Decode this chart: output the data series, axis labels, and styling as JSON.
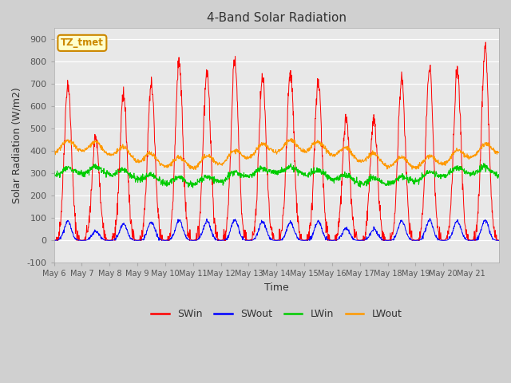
{
  "title": "4-Band Solar Radiation",
  "xlabel": "Time",
  "ylabel": "Solar Radiation (W/m2)",
  "ylim": [
    -100,
    950
  ],
  "yticks": [
    -100,
    0,
    100,
    200,
    300,
    400,
    500,
    600,
    700,
    800,
    900
  ],
  "xtick_labels": [
    "May 6",
    "May 7",
    "May 8",
    "May 9",
    "May 10",
    "May 11",
    "May 12",
    "May 13",
    "May 14",
    "May 15",
    "May 16",
    "May 17",
    "May 18",
    "May 19",
    "May 20",
    "May 21"
  ],
  "annotation_text": "TZ_tmet",
  "annotation_color": "#cc8800",
  "annotation_bg": "#ffffcc",
  "colors": {
    "SWin": "#ff0000",
    "SWout": "#0000ff",
    "LWin": "#00cc00",
    "LWout": "#ff9900"
  },
  "legend_labels": [
    "SWin",
    "SWout",
    "LWin",
    "LWout"
  ],
  "n_days": 16
}
